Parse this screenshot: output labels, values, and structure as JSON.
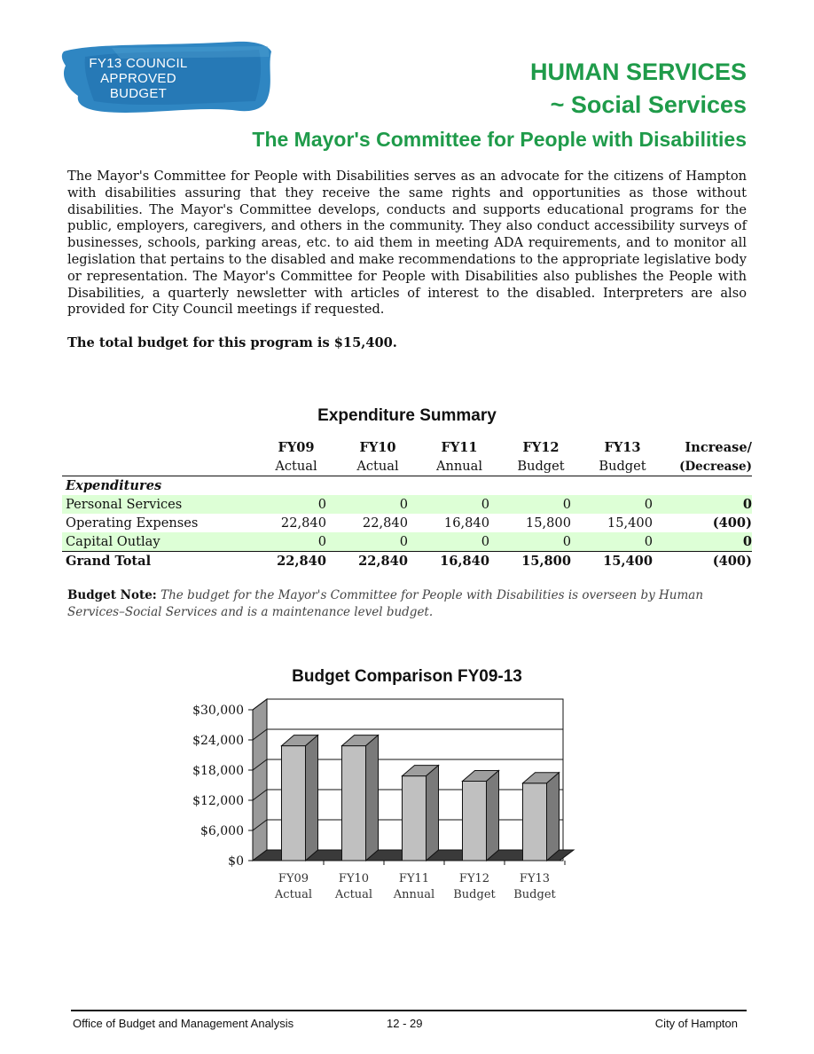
{
  "logo": {
    "line1": "FY13 COUNCIL",
    "line2": "APPROVED",
    "line3": "BUDGET"
  },
  "header": {
    "dept": "HUMAN SERVICES",
    "division": "~ Social Services",
    "program": "The Mayor's Committee for People with Disabilities"
  },
  "intro": "The Mayor's Committee for People with Disabilities serves as an advocate for the citizens of Hampton with disabilities assuring that they receive the same rights and opportunities as those without disabilities.  The Mayor's Committee develops, conducts and supports educational programs for the public, employers, caregivers, and others in the community. They also conduct accessibility surveys of businesses, schools, parking areas, etc. to aid them in meeting ADA requirements, and to monitor all legislation that pertains to the disabled and make recommendations to the appropriate legislative body or representation. The Mayor's Committee for People with Disabilities also publishes the People with Disabilities, a quarterly newsletter with articles of interest to the disabled.  Interpreters are also provided for City Council meetings if requested.",
  "total_note": "The total budget for this program is $15,400.",
  "table": {
    "title": "Expenditure Summary",
    "columns": [
      {
        "line1": "FY09",
        "line2": "Actual"
      },
      {
        "line1": "FY10",
        "line2": "Actual"
      },
      {
        "line1": "FY11",
        "line2": "Annual"
      },
      {
        "line1": "FY12",
        "line2": "Budget"
      },
      {
        "line1": "FY13",
        "line2": "Budget"
      },
      {
        "line1": "Increase/",
        "line2": "(Decrease)"
      }
    ],
    "section_label": "Expenditures",
    "rows": [
      {
        "label": "Personal Services",
        "values": [
          "0",
          "0",
          "0",
          "0",
          "0",
          "0"
        ]
      },
      {
        "label": "Operating Expenses",
        "values": [
          "22,840",
          "22,840",
          "16,840",
          "15,800",
          "15,400",
          "(400)"
        ]
      },
      {
        "label": "Capital Outlay",
        "values": [
          "0",
          "0",
          "0",
          "0",
          "0",
          "0"
        ]
      }
    ],
    "grand_total": {
      "label": "Grand Total",
      "values": [
        "22,840",
        "22,840",
        "16,840",
        "15,800",
        "15,400",
        "(400)"
      ]
    }
  },
  "budget_note": {
    "label": "Budget Note:",
    "text": "The budget for the Mayor's Committee for People with Disabilities is overseen by Human Services–Social Services and is a maintenance level budget."
  },
  "chart_data": {
    "type": "bar",
    "title": "Budget Comparison FY09-13",
    "categories": [
      {
        "line1": "FY09",
        "line2": "Actual"
      },
      {
        "line1": "FY10",
        "line2": "Actual"
      },
      {
        "line1": "FY11",
        "line2": "Annual"
      },
      {
        "line1": "FY12",
        "line2": "Budget"
      },
      {
        "line1": "FY13",
        "line2": "Budget"
      }
    ],
    "values": [
      22840,
      22840,
      16840,
      15800,
      15400
    ],
    "y_ticks": [
      "$0",
      "$6,000",
      "$12,000",
      "$18,000",
      "$24,000",
      "$30,000"
    ],
    "ylim": [
      0,
      30000
    ],
    "grid": true,
    "bar_color": "#c0c0c0"
  },
  "footer": {
    "left": "Office of Budget and Management Analysis",
    "center": "12 - 29",
    "right": "City of Hampton"
  }
}
